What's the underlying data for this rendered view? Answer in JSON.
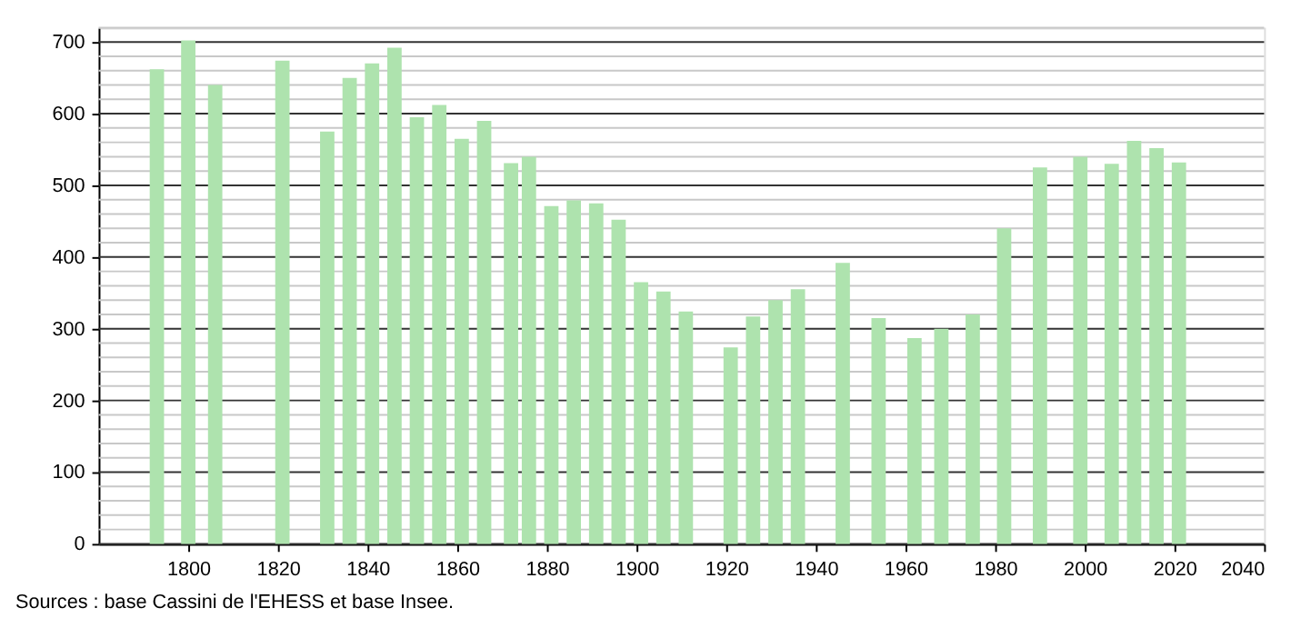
{
  "chart_data": {
    "type": "bar",
    "x": [
      1793,
      1800,
      1806,
      1821,
      1831,
      1836,
      1841,
      1846,
      1851,
      1856,
      1861,
      1866,
      1872,
      1876,
      1881,
      1886,
      1891,
      1896,
      1901,
      1906,
      1911,
      1921,
      1926,
      1931,
      1936,
      1946,
      1954,
      1962,
      1968,
      1975,
      1982,
      1990,
      1999,
      2006,
      2011,
      2016,
      2021
    ],
    "values": [
      662,
      702,
      640,
      674,
      575,
      650,
      670,
      692,
      595,
      612,
      565,
      590,
      531,
      540,
      471,
      479,
      475,
      452,
      365,
      352,
      324,
      274,
      317,
      340,
      355,
      392,
      315,
      287,
      300,
      320,
      440,
      525,
      540,
      530,
      562,
      552,
      532
    ],
    "color": "#aee3ae",
    "xlim": [
      1780,
      2040
    ],
    "xticks": [
      1800,
      1820,
      1840,
      1860,
      1880,
      1900,
      1920,
      1940,
      1960,
      1980,
      2000,
      2020,
      2040
    ],
    "ylim": [
      0,
      720
    ],
    "yticks": [
      0,
      {
        "value": 20,
        "label": null
      },
      {
        "value": 40,
        "label": null
      },
      {
        "value": 60,
        "label": null
      },
      {
        "value": 80,
        "label": null
      },
      100,
      {
        "value": 120,
        "label": null
      },
      {
        "value": 140,
        "label": null
      },
      {
        "value": 160,
        "label": null
      },
      {
        "value": 180,
        "label": null
      },
      200,
      {
        "value": 220,
        "label": null
      },
      {
        "value": 240,
        "label": null
      },
      {
        "value": 260,
        "label": null
      },
      {
        "value": 280,
        "label": null
      },
      300,
      {
        "value": 320,
        "label": null
      },
      {
        "value": 340,
        "label": null
      },
      {
        "value": 360,
        "label": null
      },
      {
        "value": 380,
        "label": null
      },
      400,
      {
        "value": 420,
        "label": null
      },
      {
        "value": 440,
        "label": null
      },
      {
        "value": 460,
        "label": null
      },
      {
        "value": 480,
        "label": null
      },
      500,
      {
        "value": 520,
        "label": null
      },
      {
        "value": 540,
        "label": null
      },
      {
        "value": 560,
        "label": null
      },
      {
        "value": 580,
        "label": null
      },
      600,
      {
        "value": 620,
        "label": null
      },
      {
        "value": 640,
        "label": null
      },
      {
        "value": 660,
        "label": null
      },
      {
        "value": 680,
        "label": null
      },
      700,
      {
        "value": 720,
        "label": null
      }
    ],
    "grid": "y",
    "annotations": [
      "Sources : base Cassini de l'EHESS et base Insee."
    ]
  }
}
